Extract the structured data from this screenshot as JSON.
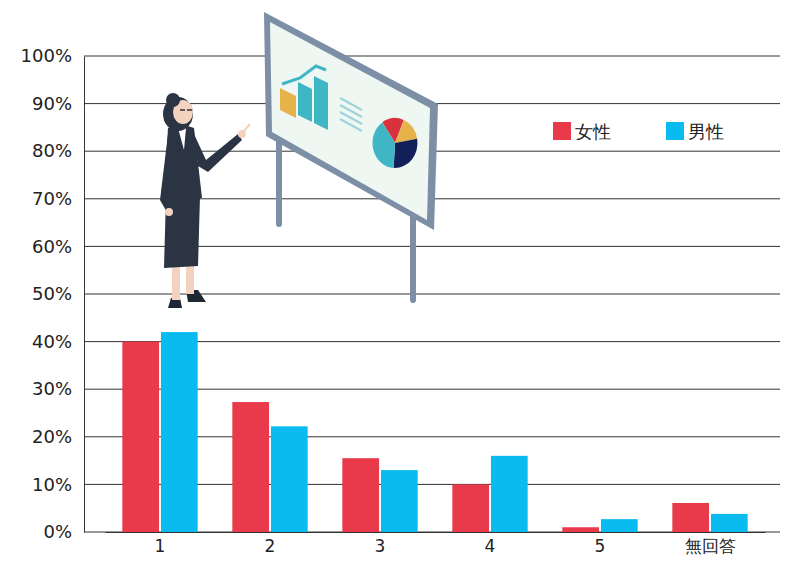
{
  "chart_data": {
    "type": "bar",
    "categories": [
      "1",
      "2",
      "3",
      "4",
      "5",
      "無回答"
    ],
    "series": [
      {
        "name": "女性",
        "color": "#e83a4a",
        "values": [
          40,
          27.3,
          15.5,
          10,
          1,
          6.1
        ]
      },
      {
        "name": "男性",
        "color": "#0abbef",
        "values": [
          42,
          22.2,
          13,
          16,
          2.7,
          3.8
        ]
      }
    ],
    "ylim": [
      0,
      100
    ],
    "yticks": [
      {
        "value": 0,
        "label": "0%"
      },
      {
        "value": 10,
        "label": "10%"
      },
      {
        "value": 20,
        "label": "20%"
      },
      {
        "value": 30,
        "label": "30%"
      },
      {
        "value": 40,
        "label": "40%"
      },
      {
        "value": 50,
        "label": "50%"
      },
      {
        "value": 60,
        "label": "60%"
      },
      {
        "value": 70,
        "label": "70%"
      },
      {
        "value": 80,
        "label": "80%"
      },
      {
        "value": 90,
        "label": "90%"
      },
      {
        "value": 100,
        "label": "100%"
      }
    ],
    "grid": true,
    "legend": "upper right"
  }
}
